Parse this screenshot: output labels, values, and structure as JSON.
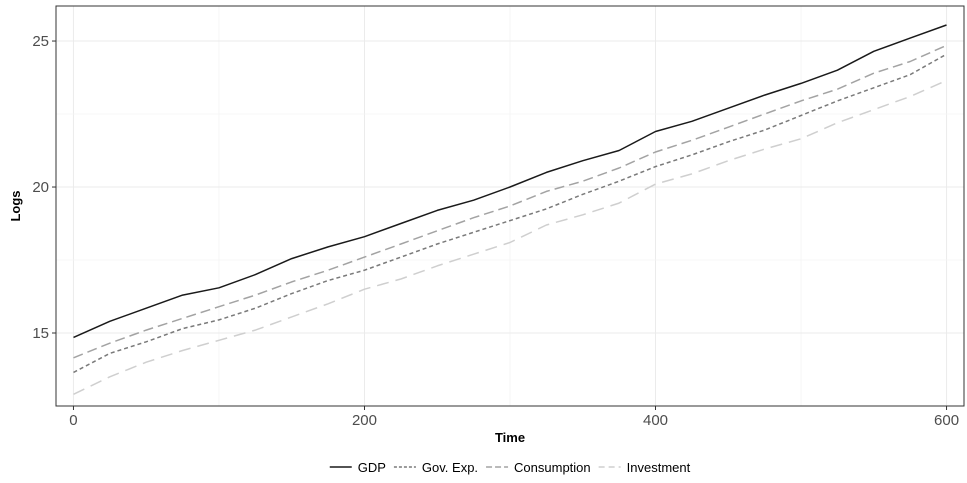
{
  "chart_data": {
    "type": "line",
    "title": "",
    "xlabel": "Time",
    "ylabel": "Logs",
    "xlim": [
      -12,
      612
    ],
    "ylim": [
      12.5,
      26.2
    ],
    "x_ticks": [
      0,
      200,
      400,
      600
    ],
    "x_tick_labels": [
      "0",
      "200",
      "400",
      "600"
    ],
    "y_ticks": [
      15,
      20,
      25
    ],
    "y_tick_labels": [
      "15",
      "20",
      "25"
    ],
    "grid": true,
    "legend_position": "bottom",
    "x": [
      0,
      25,
      50,
      75,
      100,
      125,
      150,
      175,
      200,
      225,
      250,
      275,
      300,
      325,
      350,
      375,
      400,
      425,
      450,
      475,
      500,
      525,
      550,
      575,
      600
    ],
    "series": [
      {
        "name": "GDP",
        "color": "#1a1a1a",
        "dash": "solid",
        "values": [
          14.85,
          15.4,
          15.85,
          16.3,
          16.55,
          17.0,
          17.55,
          17.95,
          18.3,
          18.75,
          19.2,
          19.55,
          20.0,
          20.5,
          20.9,
          21.25,
          21.9,
          22.25,
          22.7,
          23.15,
          23.55,
          24.0,
          24.65,
          25.1,
          25.55
        ]
      },
      {
        "name": "Gov. Exp.",
        "color": "#7a7a7a",
        "dash": "4,3",
        "values": [
          13.65,
          14.3,
          14.7,
          15.15,
          15.45,
          15.85,
          16.35,
          16.8,
          17.15,
          17.6,
          18.05,
          18.45,
          18.85,
          19.25,
          19.75,
          20.2,
          20.7,
          21.1,
          21.55,
          21.95,
          22.45,
          22.95,
          23.4,
          23.85,
          24.55
        ]
      },
      {
        "name": "Consumption",
        "color": "#a3a3a3",
        "dash": "10,5",
        "values": [
          14.15,
          14.65,
          15.1,
          15.5,
          15.9,
          16.3,
          16.75,
          17.15,
          17.6,
          18.05,
          18.5,
          18.95,
          19.35,
          19.85,
          20.2,
          20.65,
          21.2,
          21.6,
          22.05,
          22.5,
          22.95,
          23.35,
          23.9,
          24.3,
          24.85
        ]
      },
      {
        "name": "Investment",
        "color": "#cfcfcf",
        "dash": "12,7",
        "values": [
          12.9,
          13.5,
          14.0,
          14.4,
          14.75,
          15.1,
          15.55,
          16.0,
          16.5,
          16.85,
          17.3,
          17.7,
          18.1,
          18.7,
          19.05,
          19.45,
          20.1,
          20.45,
          20.9,
          21.3,
          21.65,
          22.2,
          22.65,
          23.1,
          23.65
        ]
      }
    ]
  }
}
